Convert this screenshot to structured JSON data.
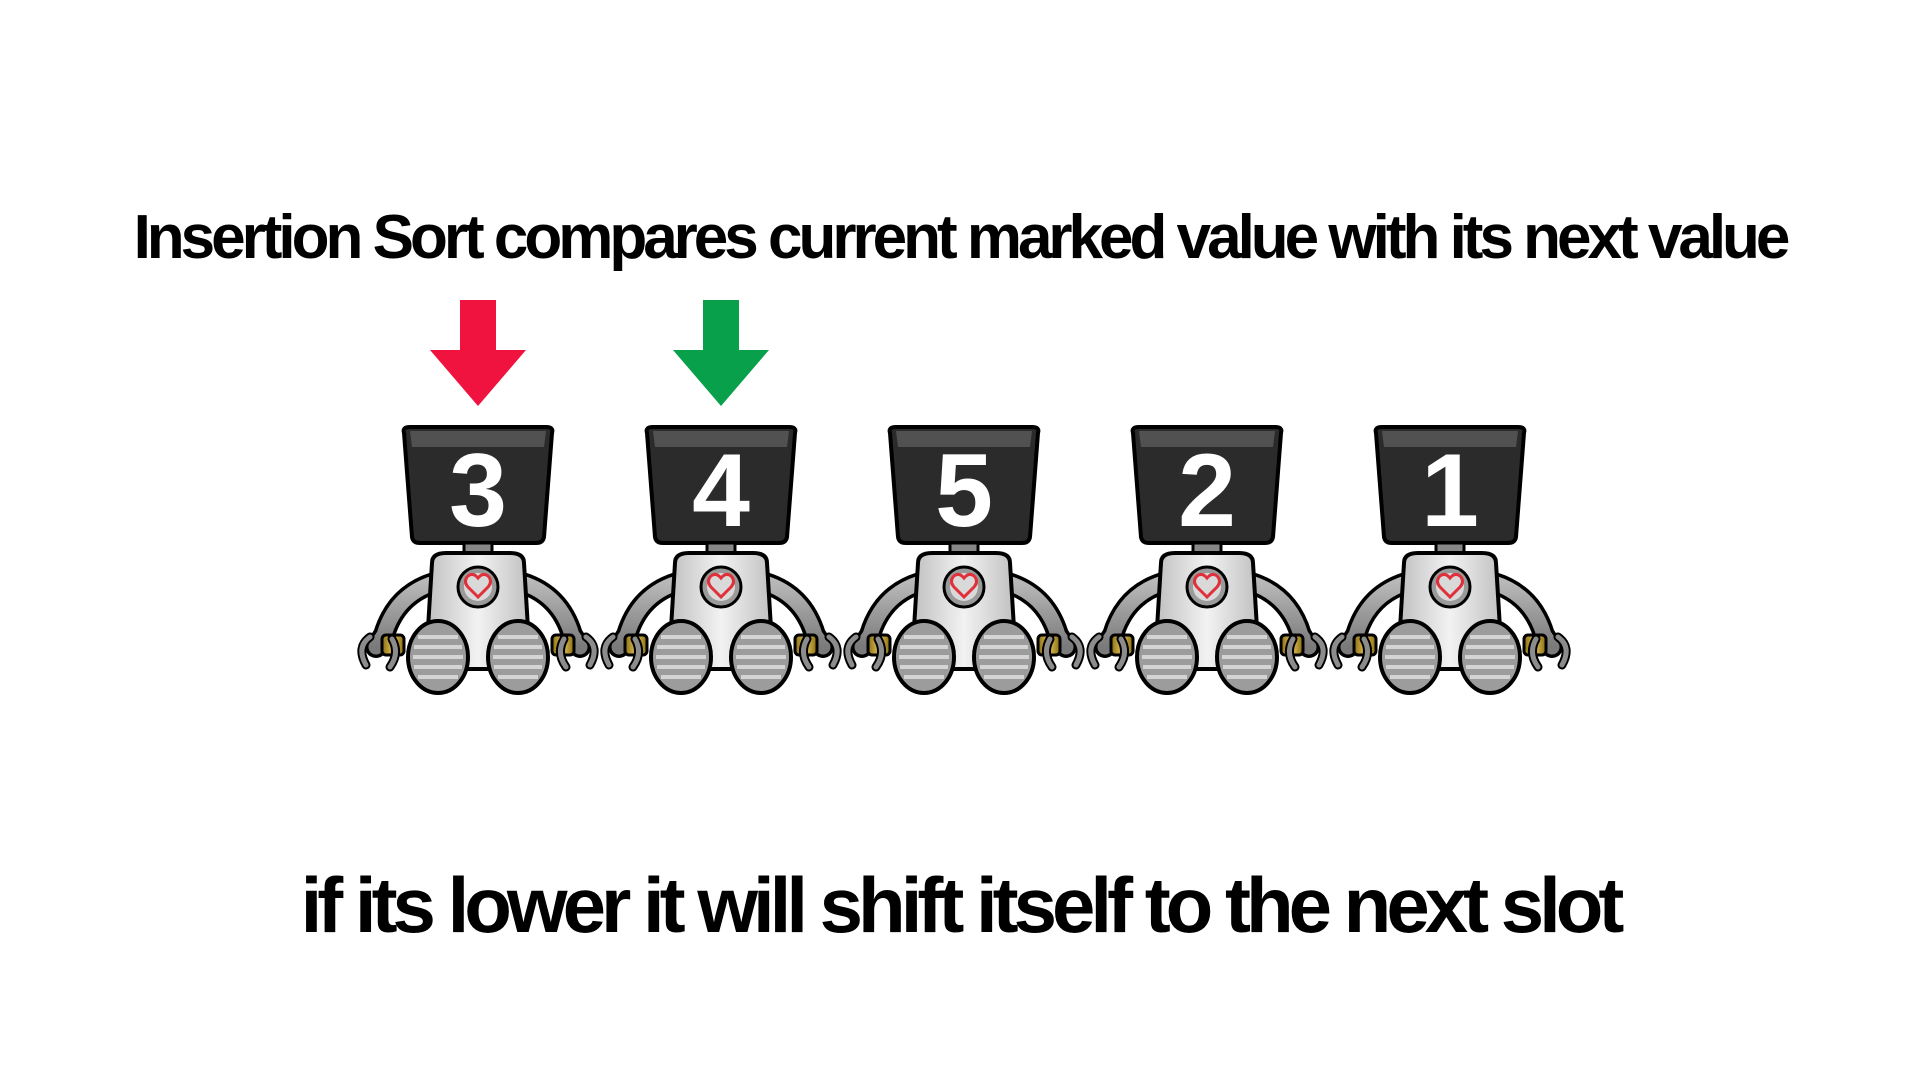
{
  "title": "Insertion Sort compares current marked value with its next value",
  "subtitle": "if its lower it will shift itself to the next slot",
  "markers": [
    {
      "name": "current",
      "color": "#f0133f",
      "index": 0
    },
    {
      "name": "next",
      "color": "#08a04a",
      "index": 1
    }
  ],
  "robots": [
    {
      "value": "3"
    },
    {
      "value": "4"
    },
    {
      "value": "5"
    },
    {
      "value": "2"
    },
    {
      "value": "1"
    }
  ],
  "icons": {
    "robot": "robot-icon",
    "heart": "heart-icon",
    "arrow": "down-arrow-icon"
  }
}
